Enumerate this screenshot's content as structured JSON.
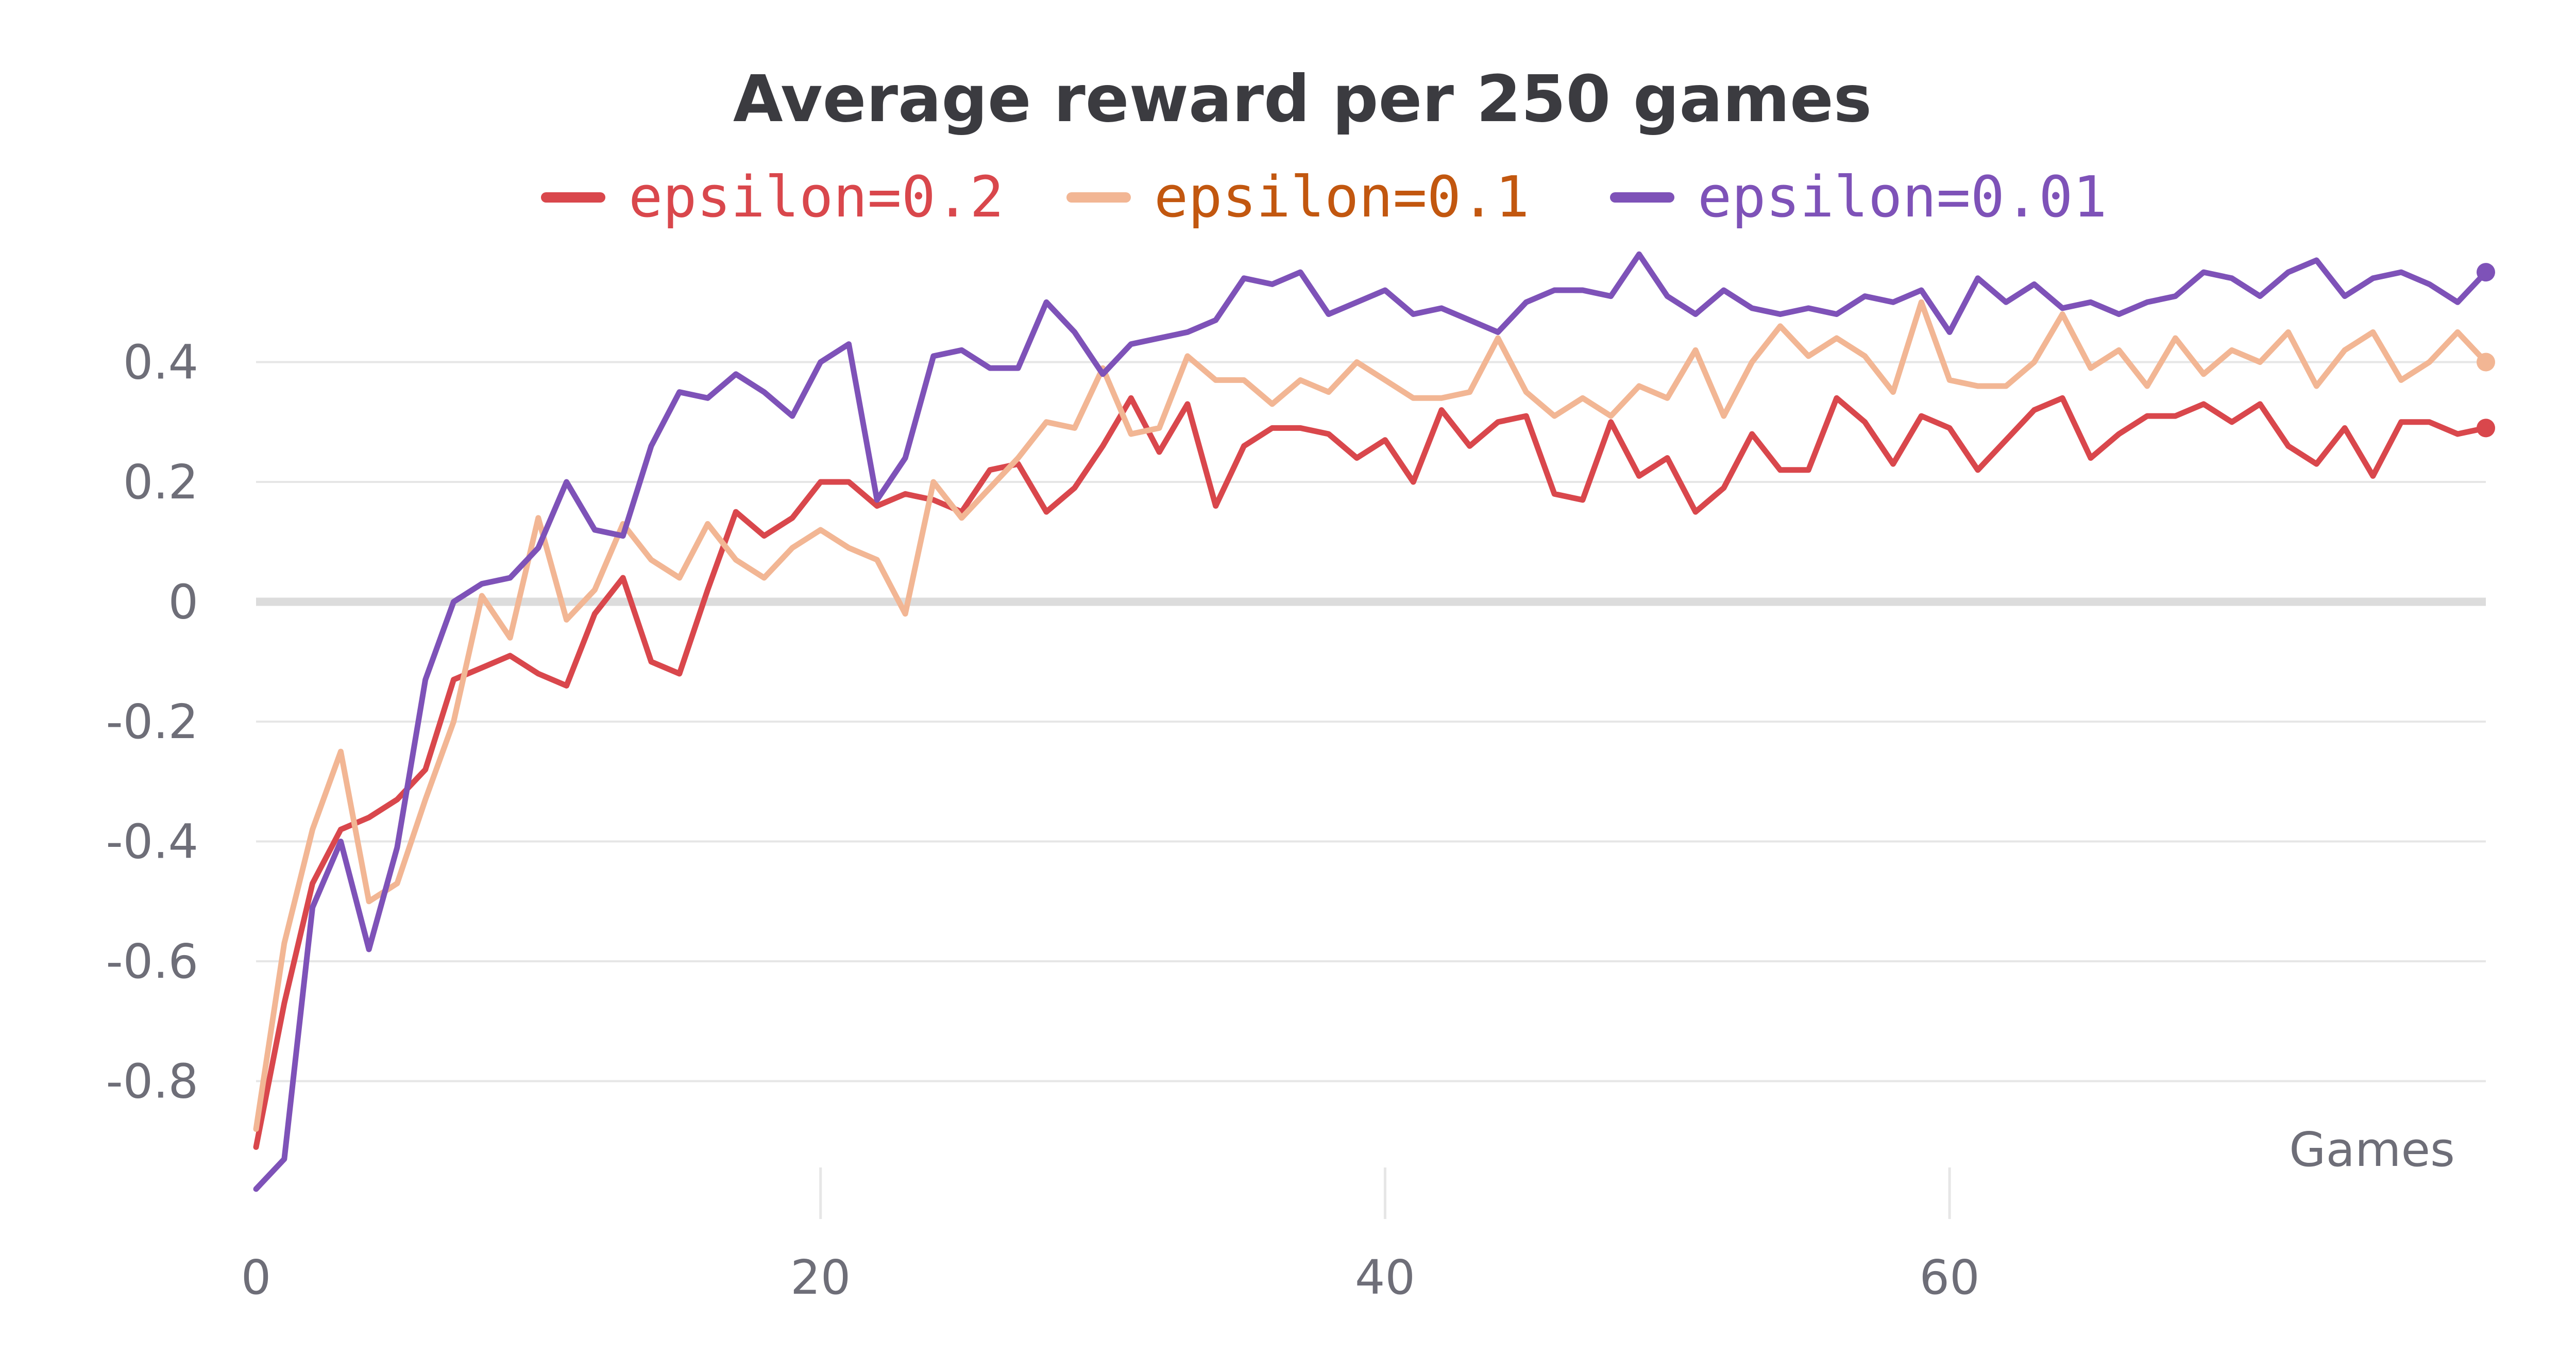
{
  "chart_data": {
    "type": "line",
    "title": "Average reward per 250 games",
    "xlabel": "Games",
    "ylabel": "",
    "xlim": [
      0,
      79
    ],
    "ylim": [
      -1.0,
      0.6
    ],
    "x_ticks": [
      0,
      20,
      40,
      60
    ],
    "y_ticks": [
      -0.8,
      -0.6,
      -0.4,
      -0.2,
      0,
      0.2,
      0.4
    ],
    "grid": true,
    "legend_position": "top",
    "colors": {
      "epsilon_0_2": "#d9474c",
      "epsilon_0_1": "#f2b694",
      "epsilon_0_01": "#7e52b8",
      "epsilon_0_1_legend_text": "#c2570f",
      "grid": "#e6e6e6",
      "zero_line": "#dcdcdc",
      "title": "#3b3b40",
      "tick_text": "#6e6e78"
    },
    "series": [
      {
        "name": "epsilon=0.2",
        "color": "#d9474c",
        "text_color": "#d9474c",
        "values": [
          -0.91,
          -0.67,
          -0.47,
          -0.38,
          -0.36,
          -0.33,
          -0.28,
          -0.13,
          -0.11,
          -0.09,
          -0.12,
          -0.14,
          -0.02,
          0.04,
          -0.1,
          -0.12,
          0.02,
          0.15,
          0.11,
          0.14,
          0.2,
          0.2,
          0.16,
          0.18,
          0.17,
          0.15,
          0.22,
          0.23,
          0.15,
          0.19,
          0.26,
          0.34,
          0.25,
          0.33,
          0.16,
          0.26,
          0.29,
          0.29,
          0.28,
          0.24,
          0.27,
          0.2,
          0.32,
          0.26,
          0.3,
          0.31,
          0.18,
          0.17,
          0.3,
          0.21,
          0.24,
          0.15,
          0.19,
          0.28,
          0.22,
          0.22,
          0.34,
          0.3,
          0.23,
          0.31,
          0.29,
          0.22,
          0.27,
          0.32,
          0.34,
          0.24,
          0.28,
          0.31,
          0.31,
          0.33,
          0.3,
          0.33,
          0.26,
          0.23,
          0.29,
          0.21,
          0.3,
          0.3,
          0.28,
          0.29
        ]
      },
      {
        "name": "epsilon=0.1",
        "color": "#f2b694",
        "text_color": "#c2570f",
        "values": [
          -0.88,
          -0.57,
          -0.38,
          -0.25,
          -0.5,
          -0.47,
          -0.33,
          -0.2,
          0.01,
          -0.06,
          0.14,
          -0.03,
          0.02,
          0.13,
          0.07,
          0.04,
          0.13,
          0.07,
          0.04,
          0.09,
          0.12,
          0.09,
          0.07,
          -0.02,
          0.2,
          0.14,
          0.19,
          0.24,
          0.3,
          0.29,
          0.39,
          0.28,
          0.29,
          0.41,
          0.37,
          0.37,
          0.33,
          0.37,
          0.35,
          0.4,
          0.37,
          0.34,
          0.34,
          0.35,
          0.44,
          0.35,
          0.31,
          0.34,
          0.31,
          0.36,
          0.34,
          0.42,
          0.31,
          0.4,
          0.46,
          0.41,
          0.44,
          0.41,
          0.35,
          0.5,
          0.37,
          0.36,
          0.36,
          0.4,
          0.48,
          0.39,
          0.42,
          0.36,
          0.44,
          0.38,
          0.42,
          0.4,
          0.45,
          0.36,
          0.42,
          0.45,
          0.37,
          0.4,
          0.45,
          0.4
        ]
      },
      {
        "name": "epsilon=0.01",
        "color": "#7e52b8",
        "text_color": "#7e52b8",
        "values": [
          -0.98,
          -0.93,
          -0.51,
          -0.4,
          -0.58,
          -0.41,
          -0.13,
          0.0,
          0.03,
          0.04,
          0.09,
          0.2,
          0.12,
          0.11,
          0.26,
          0.35,
          0.34,
          0.38,
          0.35,
          0.31,
          0.4,
          0.43,
          0.17,
          0.24,
          0.41,
          0.42,
          0.39,
          0.39,
          0.5,
          0.45,
          0.38,
          0.43,
          0.44,
          0.45,
          0.47,
          0.54,
          0.53,
          0.55,
          0.48,
          0.5,
          0.52,
          0.48,
          0.49,
          0.47,
          0.45,
          0.5,
          0.52,
          0.52,
          0.51,
          0.58,
          0.51,
          0.48,
          0.52,
          0.49,
          0.48,
          0.49,
          0.48,
          0.51,
          0.5,
          0.52,
          0.45,
          0.54,
          0.5,
          0.53,
          0.49,
          0.5,
          0.48,
          0.5,
          0.51,
          0.55,
          0.54,
          0.51,
          0.55,
          0.57,
          0.51,
          0.54,
          0.55,
          0.53,
          0.5,
          0.55
        ]
      }
    ]
  }
}
